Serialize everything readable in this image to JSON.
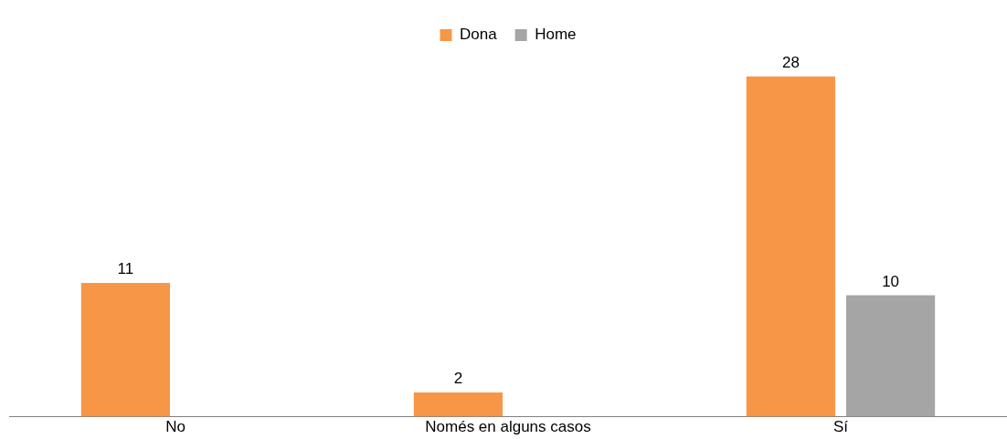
{
  "chart_data": {
    "type": "bar",
    "categories": [
      "No",
      "Només en alguns casos",
      "Sí"
    ],
    "series": [
      {
        "name": "Dona",
        "color": "#f79646",
        "values": [
          11,
          2,
          28
        ]
      },
      {
        "name": "Home",
        "color": "#a5a5a5",
        "values": [
          null,
          null,
          10
        ]
      }
    ],
    "data_labels": true,
    "legend": "top",
    "grid": false
  }
}
